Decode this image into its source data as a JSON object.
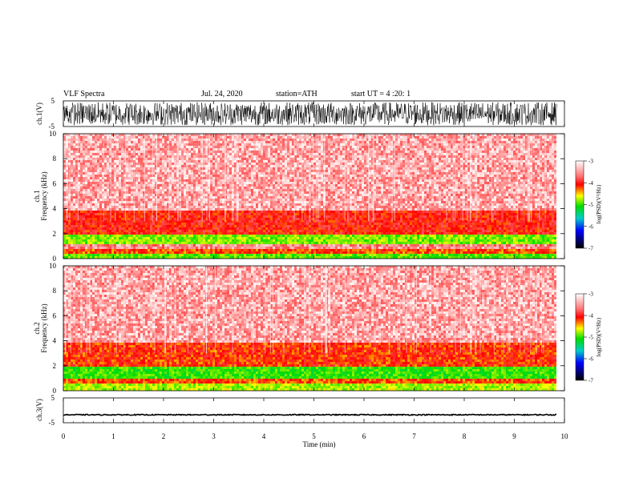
{
  "header": {
    "title": "VLF Spectra",
    "date": "Jul. 24, 2020",
    "station": "station=ATH",
    "start": "start UT = 4 :20: 1"
  },
  "chart_data": [
    {
      "type": "line",
      "name": "ch1-waveform",
      "ylabel": "ch.1(V)",
      "ylim": [
        -5,
        5
      ],
      "yticks": [
        "5",
        "-5"
      ],
      "xlim": [
        0,
        10
      ],
      "amplitude_range": [
        -4.5,
        4.5
      ]
    },
    {
      "type": "heatmap",
      "name": "ch1-spectrogram",
      "channel_label": "ch.1",
      "ylabel": "Frequency (kHz)",
      "ylim": [
        0,
        10
      ],
      "yticks": [
        "0",
        "2",
        "4",
        "6",
        "8",
        "10"
      ],
      "xlim": [
        0,
        10
      ],
      "data_end_min": 9.85,
      "colorbar": {
        "label": "log(PSD)(V²/Hz)",
        "range": [
          -7,
          -3
        ],
        "ticks": [
          "-3",
          "-4",
          "-5",
          "-6",
          "-7"
        ]
      },
      "bands": [
        {
          "f_range": [
            0.0,
            0.3
          ],
          "level": -4.8
        },
        {
          "f_range": [
            0.3,
            0.8
          ],
          "level": -4.0
        },
        {
          "f_range": [
            0.8,
            1.1
          ],
          "level": -3.4
        },
        {
          "f_range": [
            1.1,
            1.9
          ],
          "level": -4.7
        },
        {
          "f_range": [
            1.9,
            3.8
          ],
          "level": -3.85
        },
        {
          "f_range": [
            3.8,
            10.0
          ],
          "level": -3.3
        }
      ]
    },
    {
      "type": "heatmap",
      "name": "ch2-spectrogram",
      "channel_label": "ch.2",
      "ylabel": "Frequency (kHz)",
      "ylim": [
        0,
        10
      ],
      "yticks": [
        "0",
        "2",
        "4",
        "6",
        "8",
        "10"
      ],
      "xlim": [
        0,
        10
      ],
      "data_end_min": 9.85,
      "colorbar": {
        "label": "log(PSD)(V²/Hz)",
        "range": [
          -7,
          -3
        ],
        "ticks": [
          "-3",
          "-4",
          "-5",
          "-6",
          "-7"
        ]
      },
      "bands": [
        {
          "f_range": [
            0.0,
            0.6
          ],
          "level": -4.6
        },
        {
          "f_range": [
            0.6,
            1.0
          ],
          "level": -4.0
        },
        {
          "f_range": [
            1.0,
            2.0
          ],
          "level": -4.9
        },
        {
          "f_range": [
            2.0,
            3.8
          ],
          "level": -3.95
        },
        {
          "f_range": [
            3.8,
            10.0
          ],
          "level": -3.3
        }
      ]
    },
    {
      "type": "line",
      "name": "ch3-waveform",
      "ylabel": "ch.3(V)",
      "ylim": [
        -5,
        5
      ],
      "yticks": [
        "5",
        "-5"
      ],
      "xlim": [
        0,
        10
      ],
      "xlabel": "Time (min)",
      "xticks": [
        "0",
        "1",
        "2",
        "3",
        "4",
        "5",
        "6",
        "7",
        "8",
        "9",
        "10"
      ],
      "baseline": -1.8,
      "amplitude_range": [
        -0.2,
        0.2
      ]
    }
  ],
  "colors": {
    "axis": "#000000",
    "background": "#ffffff"
  }
}
